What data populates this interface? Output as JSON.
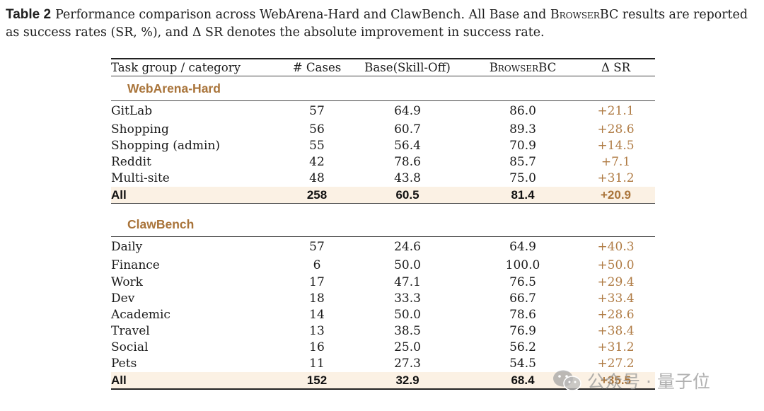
{
  "caption": {
    "label": "Table 2",
    "text_before": "Performance comparison across WebArena-Hard and ClawBench. All Base and ",
    "system_name": "BrowserBC",
    "text_after": " results are reported as success rates (SR, %), and Δ SR denotes the absolute improvement in success rate."
  },
  "table": {
    "headers": [
      "Task group / category",
      "# Cases",
      "Base(Skill-Off)",
      "BrowserBC",
      "Δ SR"
    ],
    "groups": [
      {
        "name": "WebArena-Hard",
        "rows": [
          [
            "GitLab",
            "57",
            "64.9",
            "86.0",
            "+21.1"
          ],
          [
            "Shopping",
            "56",
            "60.7",
            "89.3",
            "+28.6"
          ],
          [
            "Shopping (admin)",
            "55",
            "56.4",
            "70.9",
            "+14.5"
          ],
          [
            "Reddit",
            "42",
            "78.6",
            "85.7",
            "+7.1"
          ],
          [
            "Multi-site",
            "48",
            "43.8",
            "75.0",
            "+31.2"
          ]
        ],
        "total": [
          "All",
          "258",
          "60.5",
          "81.4",
          "+20.9"
        ]
      },
      {
        "name": "ClawBench",
        "rows": [
          [
            "Daily",
            "57",
            "24.6",
            "64.9",
            "+40.3"
          ],
          [
            "Finance",
            "6",
            "50.0",
            "100.0",
            "+50.0"
          ],
          [
            "Work",
            "17",
            "47.1",
            "76.5",
            "+29.4"
          ],
          [
            "Dev",
            "18",
            "33.3",
            "66.7",
            "+33.4"
          ],
          [
            "Academic",
            "14",
            "50.0",
            "78.6",
            "+28.6"
          ],
          [
            "Travel",
            "13",
            "38.5",
            "76.9",
            "+38.4"
          ],
          [
            "Social",
            "16",
            "25.0",
            "56.2",
            "+31.2"
          ],
          [
            "Pets",
            "11",
            "27.3",
            "54.5",
            "+27.2"
          ]
        ],
        "total": [
          "All",
          "152",
          "32.9",
          "68.4",
          "+35.5"
        ]
      }
    ]
  },
  "watermark": {
    "text": "公众号 · 量子位",
    "icon": "wechat-icon"
  },
  "colors": {
    "accent": "#a9743a",
    "delta": "#b07c45",
    "highlight": "#fbf1e4"
  }
}
